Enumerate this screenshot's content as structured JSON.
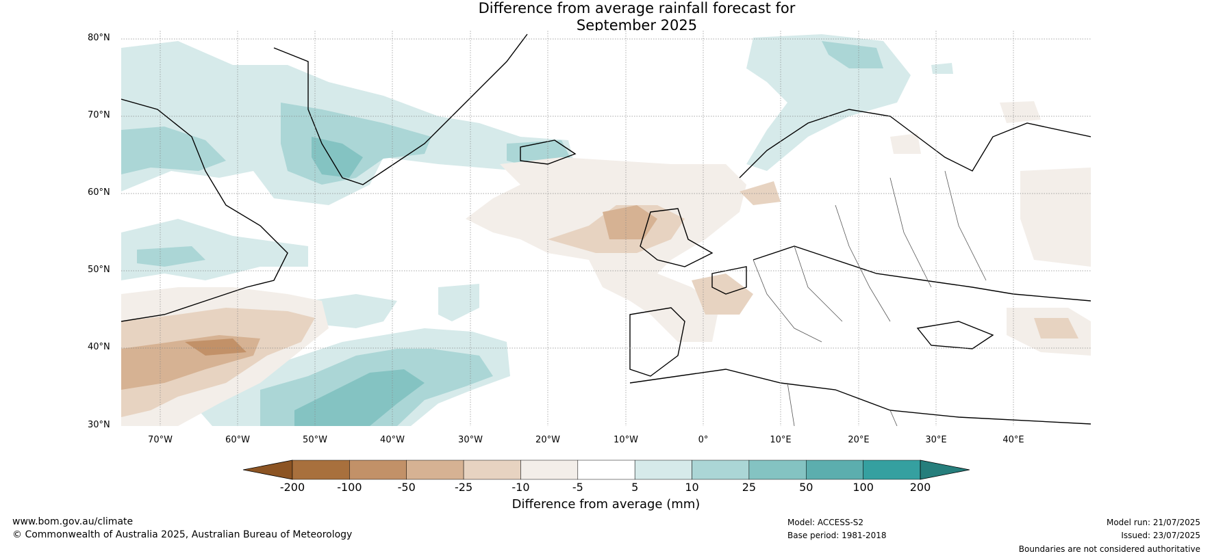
{
  "title": {
    "line1": "Difference from average rainfall forecast for",
    "line2": "September 2025"
  },
  "map": {
    "projection": "equirectangular",
    "lon_range": [
      -75,
      50
    ],
    "lat_range": [
      30,
      81
    ],
    "lat_labels": [
      "80°N",
      "70°N",
      "60°N",
      "50°N",
      "40°N",
      "30°N"
    ],
    "lon_labels": [
      "70°W",
      "60°W",
      "50°W",
      "40°W",
      "30°W",
      "20°W",
      "10°W",
      "0°",
      "10°E",
      "20°E",
      "30°E",
      "40°E"
    ]
  },
  "colorbar": {
    "ticks": [
      "-200",
      "-100",
      "-50",
      "-25",
      "-10",
      "-5",
      "5",
      "10",
      "25",
      "50",
      "100",
      "200"
    ],
    "colors": [
      "#8c5423",
      "#a8703d",
      "#c29168",
      "#d6b293",
      "#e7d3c1",
      "#f3eee9",
      "#ffffff",
      "#d6eaea",
      "#abd6d6",
      "#84c3c2",
      "#5caeae",
      "#35a0a0",
      "#267e7c"
    ],
    "label": "Difference from average (mm)"
  },
  "footer": {
    "website": "www.bom.gov.au/climate",
    "copyright": "© Commonwealth of Australia 2025, Australian Bureau of Meteorology",
    "model": "Model: ACCESS-S2",
    "base_period": "Base period: 1981-2018",
    "model_run": "Model run: 21/07/2025",
    "issued": "Issued: 23/07/2025",
    "disclaimer": "Boundaries are not considered authoritative"
  }
}
